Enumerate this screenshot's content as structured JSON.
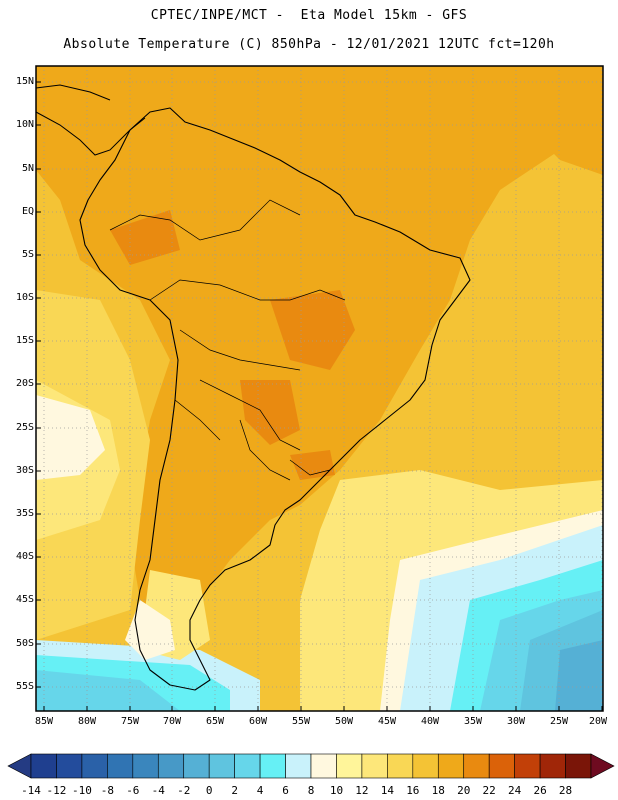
{
  "header": {
    "line1": "CPTEC/INPE/MCT -  Eta Model 15km - GFS",
    "line2": "Absolute Temperature (C) 850hPa - 12/01/2021 12UTC fct=120h"
  },
  "map": {
    "lat_labels": [
      "15N",
      "10N",
      "5N",
      "EQ",
      "5S",
      "10S",
      "15S",
      "20S",
      "25S",
      "30S",
      "35S",
      "40S",
      "45S",
      "50S",
      "55S"
    ],
    "lon_labels": [
      "85W",
      "80W",
      "75W",
      "70W",
      "65W",
      "60W",
      "55W",
      "50W",
      "45W",
      "40W",
      "35W",
      "30W",
      "25W",
      "20W"
    ],
    "lat_range": [
      -58,
      17
    ],
    "lon_range": [
      -85.5,
      -19.5
    ]
  },
  "colorbar": {
    "labels": [
      "-14",
      "-12",
      "-10",
      "-8",
      "-6",
      "-4",
      "-2",
      "0",
      "2",
      "4",
      "6",
      "8",
      "10",
      "12",
      "14",
      "16",
      "18",
      "20",
      "22",
      "24",
      "26",
      "28"
    ],
    "colors": [
      "#1f3f8f",
      "#234c9c",
      "#2a61a8",
      "#3074b3",
      "#3a86bd",
      "#4799c7",
      "#55b0d5",
      "#5fc4df",
      "#66d6ea",
      "#66f0f5",
      "#c9f2fb",
      "#fff8df",
      "#fff59a",
      "#fde77a",
      "#f9d755",
      "#f4c335",
      "#efa91a",
      "#e98a10",
      "#db6209",
      "#c24008",
      "#a02608",
      "#7a1508"
    ],
    "low_cap": "#243b83",
    "high_cap": "#6e0b20"
  }
}
